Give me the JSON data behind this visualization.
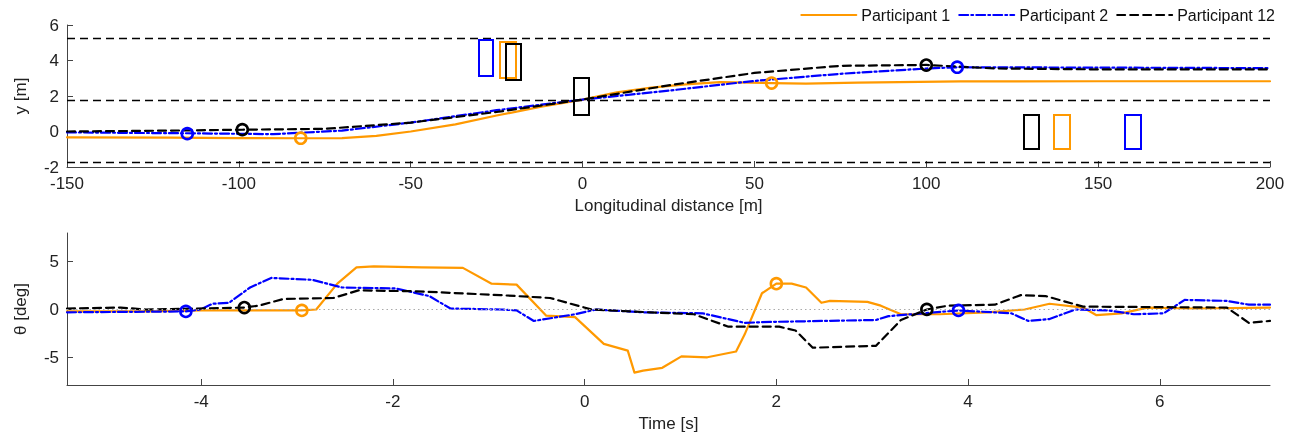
{
  "chart_data": [
    {
      "type": "line",
      "xlabel": "Longitudinal distance [m]",
      "ylabel": "y [m]",
      "xlim": [
        -150,
        200
      ],
      "xticks": [
        -150,
        -100,
        -50,
        0,
        50,
        100,
        150,
        200
      ],
      "ylim": [
        -2,
        6
      ],
      "yticks": [
        -2,
        0,
        2,
        4,
        6
      ],
      "grid": false,
      "legend": "top right",
      "marker": "none",
      "ref_lines": [
        {
          "axis": "y",
          "value": 5.25,
          "color": "#000000",
          "line_style": "dashed"
        },
        {
          "axis": "y",
          "value": 1.75,
          "color": "#000000",
          "line_style": "dashed"
        },
        {
          "axis": "y",
          "value": -1.75,
          "color": "#000000",
          "line_style": "dashed"
        }
      ],
      "series": [
        {
          "name": "Participant 1",
          "color": "#ff9900",
          "line_style": "solid",
          "x": [
            -150,
            -120,
            -100,
            -82,
            -70,
            -60,
            -50,
            -37,
            -25,
            -12,
            0,
            10,
            20,
            30,
            40,
            55,
            65,
            80,
            110,
            150,
            200
          ],
          "values": [
            -0.33,
            -0.35,
            -0.37,
            -0.38,
            -0.37,
            -0.25,
            0,
            0.4,
            0.9,
            1.4,
            1.8,
            2.2,
            2.47,
            2.65,
            2.78,
            2.73,
            2.7,
            2.75,
            2.82,
            2.83,
            2.83
          ]
        },
        {
          "name": "Participant 2",
          "color": "#0000ff",
          "line_style": "dashdot",
          "x": [
            -150,
            -130,
            -115,
            -100,
            -90,
            -70,
            -50,
            -25,
            0,
            25,
            50,
            75,
            100,
            109,
            150,
            200
          ],
          "values": [
            -0.05,
            -0.08,
            -0.1,
            -0.13,
            -0.15,
            0.05,
            0.5,
            1.2,
            1.8,
            2.3,
            2.85,
            3.25,
            3.55,
            3.62,
            3.6,
            3.57
          ]
        },
        {
          "name": "Participant 12",
          "color": "#000000",
          "line_style": "dashed",
          "x": [
            -150,
            -120,
            -99,
            -75,
            -50,
            -25,
            0,
            25,
            50,
            75,
            100,
            120,
            150,
            200
          ],
          "values": [
            0,
            0.05,
            0.1,
            0.15,
            0.5,
            1.1,
            1.8,
            2.6,
            3.3,
            3.7,
            3.75,
            3.55,
            3.5,
            3.5
          ]
        },
        {
          "type": "scatter",
          "marker": "circle",
          "color": "#ff9900",
          "x": [
            -82,
            55
          ],
          "values": [
            -0.38,
            2.73
          ]
        },
        {
          "type": "scatter",
          "marker": "circle",
          "color": "#0000ff",
          "x": [
            -115,
            109
          ],
          "values": [
            -0.12,
            3.62
          ]
        },
        {
          "type": "scatter",
          "marker": "circle",
          "color": "#000000",
          "x": [
            -99,
            100
          ],
          "values": [
            0.1,
            3.74
          ]
        }
      ]
    },
    {
      "type": "line",
      "xlabel": "Time [s]",
      "ylabel": "θ [deg]",
      "xlim": [
        -5.4,
        7.15
      ],
      "xticks": [
        -4,
        -2,
        0,
        2,
        4,
        6
      ],
      "ylim": [
        -7.9,
        8
      ],
      "yticks": [
        -5,
        0,
        5
      ],
      "grid": false,
      "marker": "none",
      "ref_lines": [
        {
          "axis": "y",
          "value": 0,
          "color": "#aaaaaa",
          "line_style": "dotted"
        }
      ],
      "series": [
        {
          "color": "#ff9900",
          "line_style": "solid",
          "x": [
            -5.4,
            -4.5,
            -4,
            -3.5,
            -2.95,
            -2.8,
            -2.58,
            -2.38,
            -2.2,
            -1.7,
            -1.27,
            -0.97,
            -0.71,
            -0.4,
            -0.1,
            0.2,
            0.45,
            0.52,
            0.61,
            0.81,
            1.01,
            1.28,
            1.58,
            1.67,
            1.85,
            2.0,
            2.16,
            2.31,
            2.47,
            2.56,
            2.95,
            3.09,
            3.3,
            3.7,
            4.2,
            4.59,
            4.85,
            5.2,
            5.34,
            5.6,
            5.87,
            6.35,
            7.15
          ],
          "values": [
            -0.2,
            -0.2,
            -0.1,
            -0.1,
            -0.1,
            0,
            2.7,
            4.4,
            4.5,
            4.4,
            4.35,
            2.7,
            2.6,
            -0.65,
            -0.8,
            -3.6,
            -4.3,
            -6.6,
            -6.4,
            -6.1,
            -4.9,
            -5.0,
            -4.4,
            -2.6,
            1.7,
            2.7,
            2.7,
            2.3,
            0.7,
            0.9,
            0.8,
            0.4,
            -0.5,
            -0.5,
            -0.3,
            0,
            0.6,
            0.2,
            -0.6,
            -0.4,
            0.2,
            0.1,
            0.2
          ]
        },
        {
          "color": "#0000ff",
          "line_style": "dashdot",
          "x": [
            -5.4,
            -4.16,
            -4.01,
            -3.88,
            -3.71,
            -3.49,
            -3.27,
            -2.84,
            -2.53,
            -1.97,
            -1.62,
            -1.4,
            -0.88,
            -0.71,
            -0.53,
            -0.1,
            0.12,
            0.61,
            1.23,
            1.67,
            1.94,
            3.04,
            3.17,
            3.9,
            4.45,
            4.63,
            4.85,
            5.12,
            5.47,
            5.73,
            6.04,
            6.26,
            6.7,
            6.93,
            7.15
          ],
          "values": [
            -0.3,
            -0.2,
            0,
            0.6,
            0.7,
            2.3,
            3.3,
            3.1,
            2.3,
            2.2,
            1.4,
            0.1,
            0,
            -0.1,
            -1.2,
            -0.5,
            0,
            -0.3,
            -0.4,
            -1.4,
            -1.3,
            -1.1,
            -0.7,
            -0.1,
            -0.4,
            -1.2,
            -1.0,
            0,
            -0.1,
            -0.5,
            -0.4,
            1.0,
            0.9,
            0.5,
            0.5
          ]
        },
        {
          "color": "#000000",
          "line_style": "dashed",
          "x": [
            -5.4,
            -4.84,
            -4.58,
            -3.55,
            -3.4,
            -3.14,
            -2.62,
            -2.36,
            -1.75,
            -0.88,
            -0.36,
            0.07,
            0.68,
            1.14,
            1.5,
            2.03,
            2.2,
            2.38,
            3.04,
            3.3,
            3.57,
            3.79,
            4.28,
            4.55,
            4.81,
            5.2,
            6.7,
            6.93,
            7.15
          ],
          "values": [
            0.1,
            0.2,
            0,
            0.2,
            0.4,
            1.1,
            1.2,
            2.0,
            1.9,
            1.5,
            1.2,
            0,
            -0.3,
            -0.5,
            -1.8,
            -1.8,
            -2.2,
            -4.0,
            -3.8,
            -1.1,
            0,
            0.4,
            0.5,
            1.5,
            1.4,
            0.3,
            0.2,
            -1.4,
            -1.2
          ]
        },
        {
          "type": "scatter",
          "marker": "circle",
          "color": "#ff9900",
          "x": [
            -2.95,
            2.0
          ],
          "values": [
            -0.1,
            2.7
          ]
        },
        {
          "type": "scatter",
          "marker": "circle",
          "color": "#0000ff",
          "x": [
            -4.16,
            3.9
          ],
          "values": [
            -0.2,
            -0.1
          ]
        },
        {
          "type": "scatter",
          "marker": "circle",
          "color": "#000000",
          "x": [
            -3.55,
            3.57
          ],
          "values": [
            0.2,
            0
          ]
        }
      ]
    }
  ]
}
